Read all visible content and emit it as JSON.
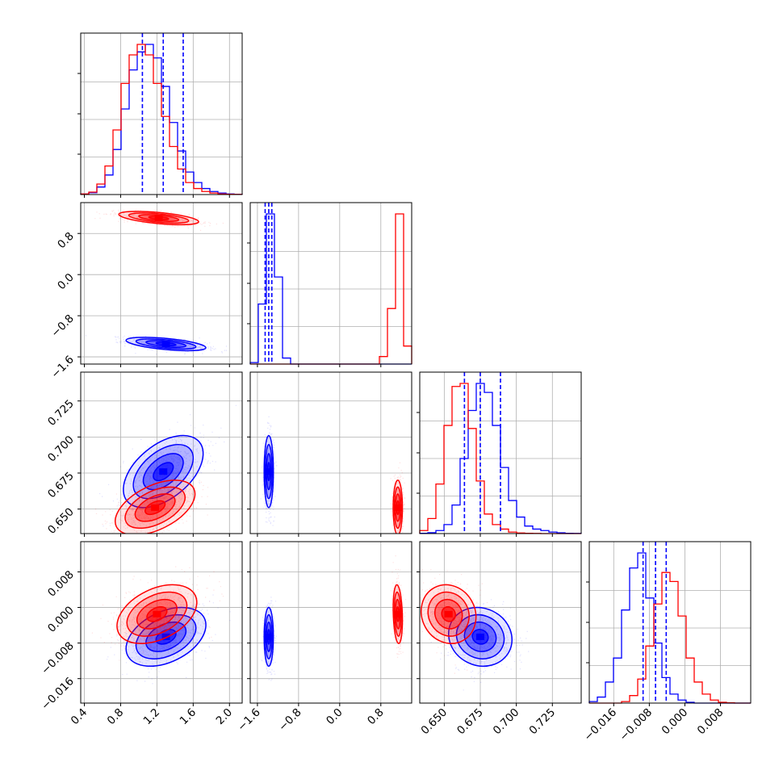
{
  "chart_data": {
    "type": "corner",
    "grid": true,
    "series": [
      {
        "name": "",
        "color": "#0000ff"
      },
      {
        "name": "",
        "color": "#ff0000"
      }
    ],
    "parameters": [
      {
        "range": [
          0.36,
          2.14
        ],
        "ticks": [
          0.4,
          0.8,
          1.2,
          1.6,
          2.0
        ],
        "tick_labels": [
          "0.4",
          "0.8",
          "1.2",
          "1.6",
          "2.0"
        ]
      },
      {
        "range": [
          -1.74,
          1.4
        ],
        "ticks": [
          -1.6,
          -0.8,
          0.0,
          0.8
        ],
        "tick_labels": [
          "−1.6",
          "−0.8",
          "0.0",
          "0.8"
        ]
      },
      {
        "range": [
          0.633,
          0.745
        ],
        "ticks": [
          0.65,
          0.675,
          0.7,
          0.725
        ],
        "tick_labels": [
          "0.650",
          "0.675",
          "0.700",
          "0.725"
        ]
      },
      {
        "range": [
          -0.0215,
          0.0148
        ],
        "ticks": [
          -0.016,
          -0.008,
          0.0,
          0.008
        ],
        "tick_labels": [
          "−0.016",
          "−0.008",
          "0.000",
          "0.008"
        ]
      }
    ],
    "diagonal": [
      {
        "bins": [
          0.36,
          2.14,
          20
        ],
        "quantile_lines": [
          1.04,
          1.27,
          1.49
        ],
        "blue": [
          0.003,
          0.012,
          0.05,
          0.13,
          0.3,
          0.57,
          0.83,
          0.95,
          1.0,
          0.91,
          0.72,
          0.48,
          0.29,
          0.15,
          0.08,
          0.04,
          0.02,
          0.01,
          0.004,
          0.001
        ],
        "red": [
          0.004,
          0.016,
          0.07,
          0.19,
          0.43,
          0.74,
          0.93,
          1.0,
          0.93,
          0.74,
          0.52,
          0.32,
          0.17,
          0.08,
          0.04,
          0.02,
          0.01,
          0.004,
          0.002,
          0.001
        ]
      },
      {
        "bins": [
          -1.74,
          1.4,
          20
        ],
        "quantile_lines": [
          -1.45,
          -1.38,
          -1.32
        ],
        "blue": [
          0.01,
          0.4,
          1.0,
          0.58,
          0.04,
          0,
          0,
          0,
          0,
          0,
          0,
          0,
          0,
          0,
          0,
          0,
          0,
          0,
          0,
          0
        ],
        "red": [
          0,
          0,
          0,
          0,
          0,
          0,
          0,
          0,
          0,
          0,
          0,
          0,
          0,
          0,
          0,
          0,
          0.05,
          0.37,
          1.0,
          0.12
        ]
      },
      {
        "bins": [
          0.633,
          0.745,
          20
        ],
        "quantile_lines": [
          0.664,
          0.675,
          0.689
        ],
        "blue": [
          0.002,
          0.006,
          0.02,
          0.06,
          0.19,
          0.5,
          0.82,
          1.0,
          0.94,
          0.72,
          0.44,
          0.22,
          0.11,
          0.05,
          0.03,
          0.02,
          0.01,
          0.005,
          0.002,
          0.001
        ],
        "red": [
          0.02,
          0.1,
          0.33,
          0.72,
          0.98,
          1.0,
          0.7,
          0.35,
          0.13,
          0.06,
          0.03,
          0.01,
          0.004,
          0.002,
          0.001,
          0,
          0,
          0,
          0,
          0
        ]
      },
      {
        "bins": [
          -0.0215,
          0.0148,
          20
        ],
        "quantile_lines": [
          -0.0094,
          -0.0066,
          -0.0042
        ],
        "blue": [
          0.01,
          0.04,
          0.14,
          0.3,
          0.62,
          0.9,
          1.0,
          0.7,
          0.4,
          0.17,
          0.06,
          0.02,
          0.005,
          0,
          0,
          0,
          0,
          0,
          0,
          0
        ],
        "red": [
          0,
          0,
          0,
          0,
          0.01,
          0.05,
          0.16,
          0.38,
          0.66,
          0.87,
          0.81,
          0.58,
          0.3,
          0.14,
          0.06,
          0.02,
          0.005,
          0.002,
          0,
          0
        ]
      }
    ],
    "pairs": [
      {
        "x": 0,
        "y": 1,
        "blue": {
          "mean": [
            1.3,
            -1.35
          ],
          "sd": [
            0.22,
            0.065
          ],
          "rho": -0.55
        },
        "red": {
          "mean": [
            1.22,
            1.1
          ],
          "sd": [
            0.22,
            0.065
          ],
          "rho": -0.55
        }
      },
      {
        "x": 0,
        "y": 2,
        "blue": {
          "mean": [
            1.27,
            0.676
          ],
          "sd": [
            0.22,
            0.0125
          ],
          "rho": 0.5
        },
        "red": {
          "mean": [
            1.18,
            0.651
          ],
          "sd": [
            0.22,
            0.0095
          ],
          "rho": 0.5
        }
      },
      {
        "x": 1,
        "y": 2,
        "blue": {
          "mean": [
            -1.38,
            0.676
          ],
          "sd": [
            0.045,
            0.0125
          ],
          "rho": 0.0
        },
        "red": {
          "mean": [
            1.13,
            0.651
          ],
          "sd": [
            0.045,
            0.0095
          ],
          "rho": 0.0
        }
      },
      {
        "x": 0,
        "y": 3,
        "blue": {
          "mean": [
            1.3,
            -0.0066
          ],
          "sd": [
            0.22,
            0.0033
          ],
          "rho": 0.4
        },
        "red": {
          "mean": [
            1.2,
            -0.0015
          ],
          "sd": [
            0.22,
            0.0033
          ],
          "rho": 0.4
        }
      },
      {
        "x": 1,
        "y": 3,
        "blue": {
          "mean": [
            -1.38,
            -0.0066
          ],
          "sd": [
            0.045,
            0.0033
          ],
          "rho": 0.0
        },
        "red": {
          "mean": [
            1.13,
            -0.0015
          ],
          "sd": [
            0.045,
            0.0033
          ],
          "rho": -0.2
        }
      },
      {
        "x": 2,
        "y": 3,
        "blue": {
          "mean": [
            0.675,
            -0.0066
          ],
          "sd": [
            0.011,
            0.0033
          ],
          "rho": -0.1
        },
        "red": {
          "mean": [
            0.653,
            -0.0015
          ],
          "sd": [
            0.0095,
            0.0033
          ],
          "rho": -0.1
        }
      }
    ]
  }
}
